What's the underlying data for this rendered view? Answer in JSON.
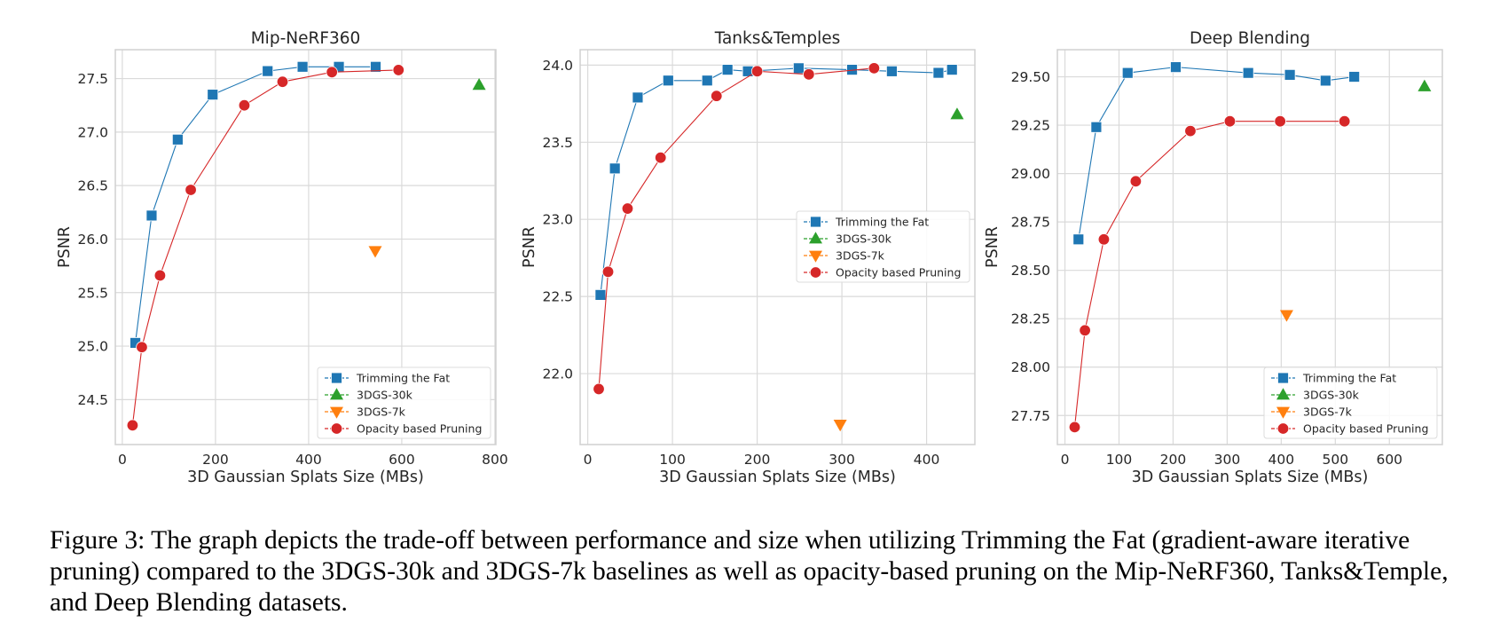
{
  "figure": {
    "caption": "Figure 3: The graph depicts the trade-off between performance and size when utilizing Trimming the Fat (gradient-aware iterative pruning) compared to the 3DGS-30k and 3DGS-7k baselines as well as opacity-based pruning on the Mip-NeRF360, Tanks&Temple, and Deep Blending datasets."
  },
  "colors": {
    "trimming": "#1f77b4",
    "gs30k": "#2ca02c",
    "gs7k": "#ff7f0e",
    "opacity": "#d62728",
    "grid": "#dadada"
  },
  "chart_data": [
    {
      "type": "line",
      "title": "Mip-NeRF360",
      "xlabel": "3D Gaussian Splats Size (MBs)",
      "ylabel": "PSNR",
      "xlim": [
        -15,
        802
      ],
      "ylim": [
        24.08,
        27.77
      ],
      "xticks": [
        0,
        200,
        400,
        600,
        800
      ],
      "yticks": [
        24.5,
        25.0,
        25.5,
        26.0,
        26.5,
        27.0,
        27.5
      ],
      "ytick_decimals": 1,
      "grid": true,
      "legend": "lower right",
      "series": [
        {
          "name": "Trimming the Fat",
          "marker": "square",
          "color": "#1f77b4",
          "line": true,
          "points": [
            [
              28,
              25.03
            ],
            [
              63,
              26.22
            ],
            [
              119,
              26.93
            ],
            [
              194,
              27.35
            ],
            [
              312,
              27.57
            ],
            [
              387,
              27.61
            ],
            [
              465,
              27.61
            ],
            [
              544,
              27.61
            ]
          ]
        },
        {
          "name": "3DGS-30k",
          "marker": "triangle-up",
          "color": "#2ca02c",
          "line": false,
          "points": [
            [
              766,
              27.44
            ]
          ]
        },
        {
          "name": "3DGS-7k",
          "marker": "triangle-down",
          "color": "#ff7f0e",
          "line": false,
          "points": [
            [
              543,
              25.89
            ]
          ]
        },
        {
          "name": "Opacity based Pruning",
          "marker": "circle",
          "color": "#d62728",
          "line": true,
          "points": [
            [
              22,
              24.26
            ],
            [
              42,
              24.99
            ],
            [
              81,
              25.66
            ],
            [
              147,
              26.46
            ],
            [
              262,
              27.25
            ],
            [
              344,
              27.47
            ],
            [
              450,
              27.56
            ],
            [
              593,
              27.58
            ]
          ]
        }
      ]
    },
    {
      "type": "line",
      "title": "Tanks&Temples",
      "xlabel": "3D Gaussian Splats Size (MBs)",
      "ylabel": "PSNR",
      "xlim": [
        -9,
        457
      ],
      "ylim": [
        21.54,
        24.1
      ],
      "xticks": [
        0,
        100,
        200,
        300,
        400
      ],
      "yticks": [
        22.0,
        22.5,
        23.0,
        23.5,
        24.0
      ],
      "ytick_decimals": 1,
      "grid": true,
      "legend": "center right",
      "series": [
        {
          "name": "Trimming the Fat",
          "marker": "square",
          "color": "#1f77b4",
          "line": true,
          "points": [
            [
              15,
              22.51
            ],
            [
              32,
              23.33
            ],
            [
              59,
              23.79
            ],
            [
              95,
              23.9
            ],
            [
              141,
              23.9
            ],
            [
              165,
              23.97
            ],
            [
              189,
              23.96
            ],
            [
              249,
              23.98
            ],
            [
              312,
              23.97
            ],
            [
              359,
              23.96
            ],
            [
              414,
              23.95
            ],
            [
              430,
              23.97
            ]
          ]
        },
        {
          "name": "3DGS-30k",
          "marker": "triangle-up",
          "color": "#2ca02c",
          "line": false,
          "points": [
            [
              436,
              23.68
            ]
          ]
        },
        {
          "name": "3DGS-7k",
          "marker": "triangle-down",
          "color": "#ff7f0e",
          "line": false,
          "points": [
            [
              298,
              21.67
            ]
          ]
        },
        {
          "name": "Opacity based Pruning",
          "marker": "circle",
          "color": "#d62728",
          "line": true,
          "points": [
            [
              13,
              21.9
            ],
            [
              24,
              22.66
            ],
            [
              47,
              23.07
            ],
            [
              86,
              23.4
            ],
            [
              152,
              23.8
            ],
            [
              200,
              23.96
            ],
            [
              261,
              23.94
            ],
            [
              338,
              23.98
            ]
          ]
        }
      ]
    },
    {
      "type": "line",
      "title": "Deep Blending",
      "xlabel": "3D Gaussian Splats Size (MBs)",
      "ylabel": "PSNR",
      "xlim": [
        -14,
        698
      ],
      "ylim": [
        27.6,
        29.64
      ],
      "xticks": [
        0,
        100,
        200,
        300,
        400,
        500,
        600
      ],
      "yticks": [
        27.75,
        28.0,
        28.25,
        28.5,
        28.75,
        29.0,
        29.25,
        29.5
      ],
      "ytick_decimals": 2,
      "grid": true,
      "legend": "lower right",
      "series": [
        {
          "name": "Trimming the Fat",
          "marker": "square",
          "color": "#1f77b4",
          "line": true,
          "points": [
            [
              25,
              28.66
            ],
            [
              58,
              29.24
            ],
            [
              116,
              29.52
            ],
            [
              205,
              29.55
            ],
            [
              339,
              29.52
            ],
            [
              416,
              29.51
            ],
            [
              482,
              29.48
            ],
            [
              535,
              29.5
            ]
          ]
        },
        {
          "name": "3DGS-30k",
          "marker": "triangle-up",
          "color": "#2ca02c",
          "line": false,
          "points": [
            [
              665,
              29.45
            ]
          ]
        },
        {
          "name": "3DGS-7k",
          "marker": "triangle-down",
          "color": "#ff7f0e",
          "line": false,
          "points": [
            [
              410,
              28.27
            ]
          ]
        },
        {
          "name": "Opacity based Pruning",
          "marker": "circle",
          "color": "#d62728",
          "line": true,
          "points": [
            [
              18,
              27.69
            ],
            [
              37,
              28.19
            ],
            [
              72,
              28.66
            ],
            [
              131,
              28.96
            ],
            [
              232,
              29.22
            ],
            [
              305,
              29.27
            ],
            [
              398,
              29.27
            ],
            [
              517,
              29.27
            ]
          ]
        }
      ]
    }
  ]
}
